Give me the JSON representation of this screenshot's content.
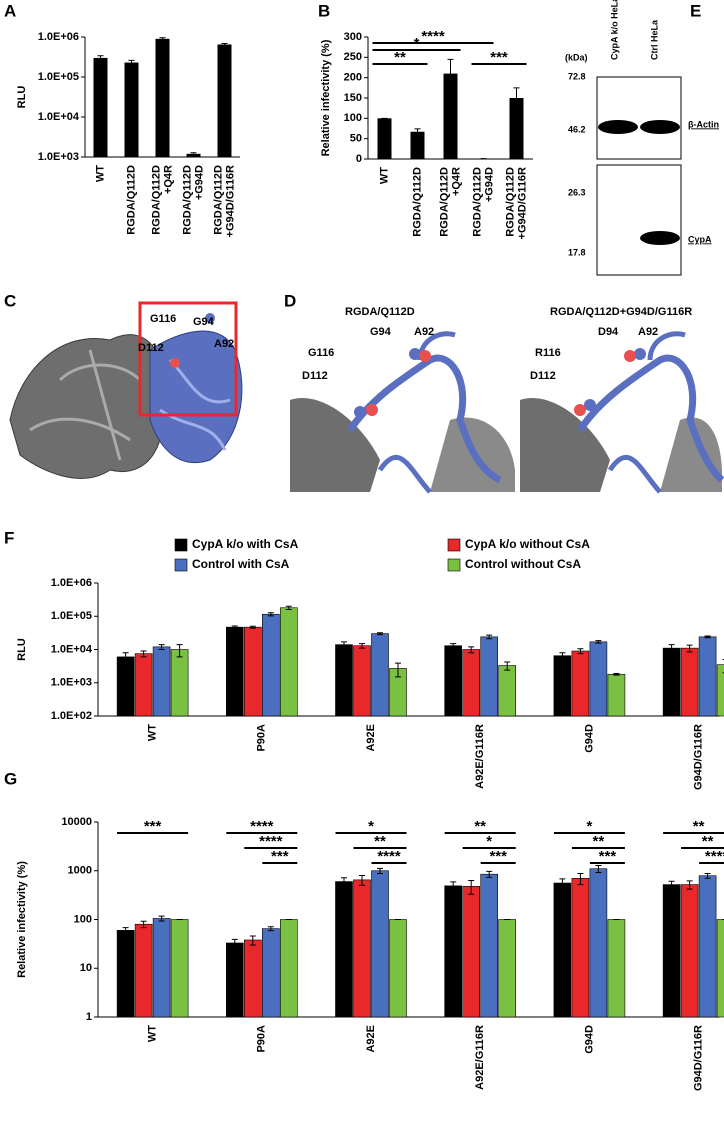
{
  "panel_labels": [
    "A",
    "B",
    "C",
    "D",
    "E",
    "F",
    "G"
  ],
  "chart_data": [
    {
      "type": "bar",
      "y_label": "RLU",
      "log_scale": true,
      "color": "#000000",
      "categories": [
        "WT",
        "RGDA/Q112D",
        "RGDA/Q112D\n+Q4R",
        "RGDA/Q112D\n+G94D",
        "RGDA/Q112D\n+G94D/G116R"
      ],
      "values": [
        300000,
        230000,
        900000,
        1200,
        650000
      ],
      "errors": [
        40000,
        30000,
        60000,
        80,
        40000
      ],
      "ylim": [
        1000,
        1000000
      ],
      "yticks": [
        {
          "value": 1000,
          "label": "1.0E+03"
        },
        {
          "value": 10000,
          "label": "1.0E+04"
        },
        {
          "value": 100000,
          "label": "1.0E+05"
        },
        {
          "value": 1000000,
          "label": "1.0E+06"
        }
      ]
    },
    {
      "type": "bar",
      "y_label": "Relative infectivity (%)",
      "log_scale": false,
      "color": "#000000",
      "categories": [
        "WT",
        "RGDA/Q112D",
        "RGDA/Q112D\n+Q4R",
        "RGDA/Q112D\n+G94D",
        "RGDA/Q112D\n+G94D/G116R"
      ],
      "values": [
        100,
        67,
        210,
        1,
        150
      ],
      "errors": [
        0,
        7,
        35,
        0,
        25
      ],
      "ylim": [
        0,
        300
      ],
      "yticks": [
        0,
        50,
        100,
        150,
        200,
        250,
        300
      ],
      "brackets": [
        {
          "label": "****",
          "from": 0,
          "to": 3
        },
        {
          "label": "*",
          "from": 0,
          "to": 2
        },
        {
          "label": "**",
          "from": 0,
          "to": 1
        },
        {
          "label": "***",
          "from": 3,
          "to": 4
        }
      ]
    },
    {
      "type": "bar",
      "y_label": "RLU",
      "log_scale": true,
      "categories": [
        "WT",
        "P90A",
        "A92E",
        "A92E/G116R",
        "G94D",
        "G94D/G116R"
      ],
      "series": [
        {
          "name": "CypA k/o with CsA",
          "color": "#000000",
          "values": [
            6000,
            47000,
            14000,
            13000,
            6500,
            11000
          ],
          "errors": [
            2000,
            4000,
            3000,
            2000,
            1500,
            3000
          ]
        },
        {
          "name": "CypA k/o without CsA",
          "color": "#e8282b",
          "values": [
            7500,
            47000,
            13000,
            10000,
            9000,
            11000
          ],
          "errors": [
            1500,
            3000,
            2000,
            2000,
            1500,
            2500
          ]
        },
        {
          "name": "Control with CsA",
          "color": "#4a6fbf",
          "values": [
            12000,
            115000,
            30000,
            24000,
            17000,
            24000
          ],
          "errors": [
            2000,
            12000,
            2000,
            3000,
            1500,
            1500
          ]
        },
        {
          "name": "Control without CsA",
          "color": "#7ac143",
          "values": [
            10000,
            180000,
            2700,
            3300,
            1800,
            3500
          ],
          "errors": [
            4000,
            20000,
            1200,
            900,
            100,
            1500
          ]
        }
      ],
      "ylim": [
        100,
        1000000
      ],
      "yticks": [
        {
          "value": 100,
          "label": "1.0E+02"
        },
        {
          "value": 1000,
          "label": "1.0E+03"
        },
        {
          "value": 10000,
          "label": "1.0E+04"
        },
        {
          "value": 100000,
          "label": "1.0E+05"
        },
        {
          "value": 1000000,
          "label": "1.0E+06"
        }
      ]
    },
    {
      "type": "bar",
      "y_label": "Relative infectivity (%)",
      "log_scale": true,
      "categories": [
        "WT",
        "P90A",
        "A92E",
        "A92E/G116R",
        "G94D",
        "G94D/G116R"
      ],
      "series": [
        {
          "name": "CypA k/o with CsA",
          "color": "#000000",
          "values": [
            60,
            33,
            600,
            490,
            560,
            520
          ],
          "errors": [
            8,
            6,
            120,
            100,
            120,
            90
          ]
        },
        {
          "name": "CypA k/o without CsA",
          "color": "#e8282b",
          "values": [
            80,
            38,
            650,
            480,
            700,
            520
          ],
          "errors": [
            12,
            8,
            150,
            150,
            180,
            100
          ]
        },
        {
          "name": "Control with CsA",
          "color": "#4a6fbf",
          "values": [
            105,
            65,
            1000,
            850,
            1100,
            790
          ],
          "errors": [
            12,
            6,
            120,
            120,
            180,
            90
          ]
        },
        {
          "name": "Control without CsA",
          "color": "#7ac143",
          "values": [
            100,
            100,
            100,
            100,
            100,
            100
          ],
          "errors": [
            0,
            0,
            0,
            0,
            0,
            0
          ]
        }
      ],
      "ylim": [
        1,
        10000
      ],
      "yticks": [
        1,
        10,
        100,
        1000,
        10000
      ],
      "brackets": [
        {
          "label": "***",
          "group": 0,
          "from": 0,
          "to": 3
        },
        {
          "label": "****",
          "group": 1,
          "from": 0,
          "to": 3
        },
        {
          "label": "****",
          "group": 1,
          "from": 1,
          "to": 3
        },
        {
          "label": "***",
          "group": 1,
          "from": 2,
          "to": 3
        },
        {
          "label": "*",
          "group": 2,
          "from": 0,
          "to": 3
        },
        {
          "label": "**",
          "group": 2,
          "from": 1,
          "to": 3
        },
        {
          "label": "****",
          "group": 2,
          "from": 2,
          "to": 3
        },
        {
          "label": "**",
          "group": 3,
          "from": 0,
          "to": 3
        },
        {
          "label": "*",
          "group": 3,
          "from": 1,
          "to": 3
        },
        {
          "label": "***",
          "group": 3,
          "from": 2,
          "to": 3
        },
        {
          "label": "*",
          "group": 4,
          "from": 0,
          "to": 3
        },
        {
          "label": "**",
          "group": 4,
          "from": 1,
          "to": 3
        },
        {
          "label": "***",
          "group": 4,
          "from": 2,
          "to": 3
        },
        {
          "label": "**",
          "group": 5,
          "from": 0,
          "to": 3
        },
        {
          "label": "**",
          "group": 5,
          "from": 1,
          "to": 3
        },
        {
          "label": "****",
          "group": 5,
          "from": 2,
          "to": 3
        }
      ]
    }
  ],
  "structure": {
    "overview_labels": [
      "G116",
      "G94",
      "D112",
      "A92"
    ],
    "left_title": "RGDA/Q112D",
    "left_labels": [
      "G94",
      "A92",
      "G116",
      "D112"
    ],
    "right_title": "RGDA/Q112D+G94D/G116R",
    "right_labels": [
      "D94",
      "A92",
      "R116",
      "D112"
    ]
  },
  "blot": {
    "lanes": [
      "CypA k/o HeLa",
      "Ctrl HeLa"
    ],
    "unit": "(kDa)",
    "markers": [
      "72.8",
      "46.2",
      "26.3",
      "17.8"
    ],
    "proteins": [
      "β-Actin",
      "CypA"
    ]
  }
}
